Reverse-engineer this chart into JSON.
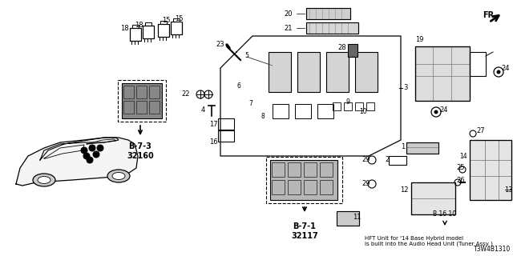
{
  "bg_color": "#ffffff",
  "part_number": "T3W4B1310",
  "note_text": "HFT Unit for '14 Base Hybrid model\nis built into the Audio Head Unit (Tuner Assy )",
  "note_ref": "B 16 10",
  "b71_label": "B-7-1\n32117",
  "b73_label": "B-7-3\n32160"
}
